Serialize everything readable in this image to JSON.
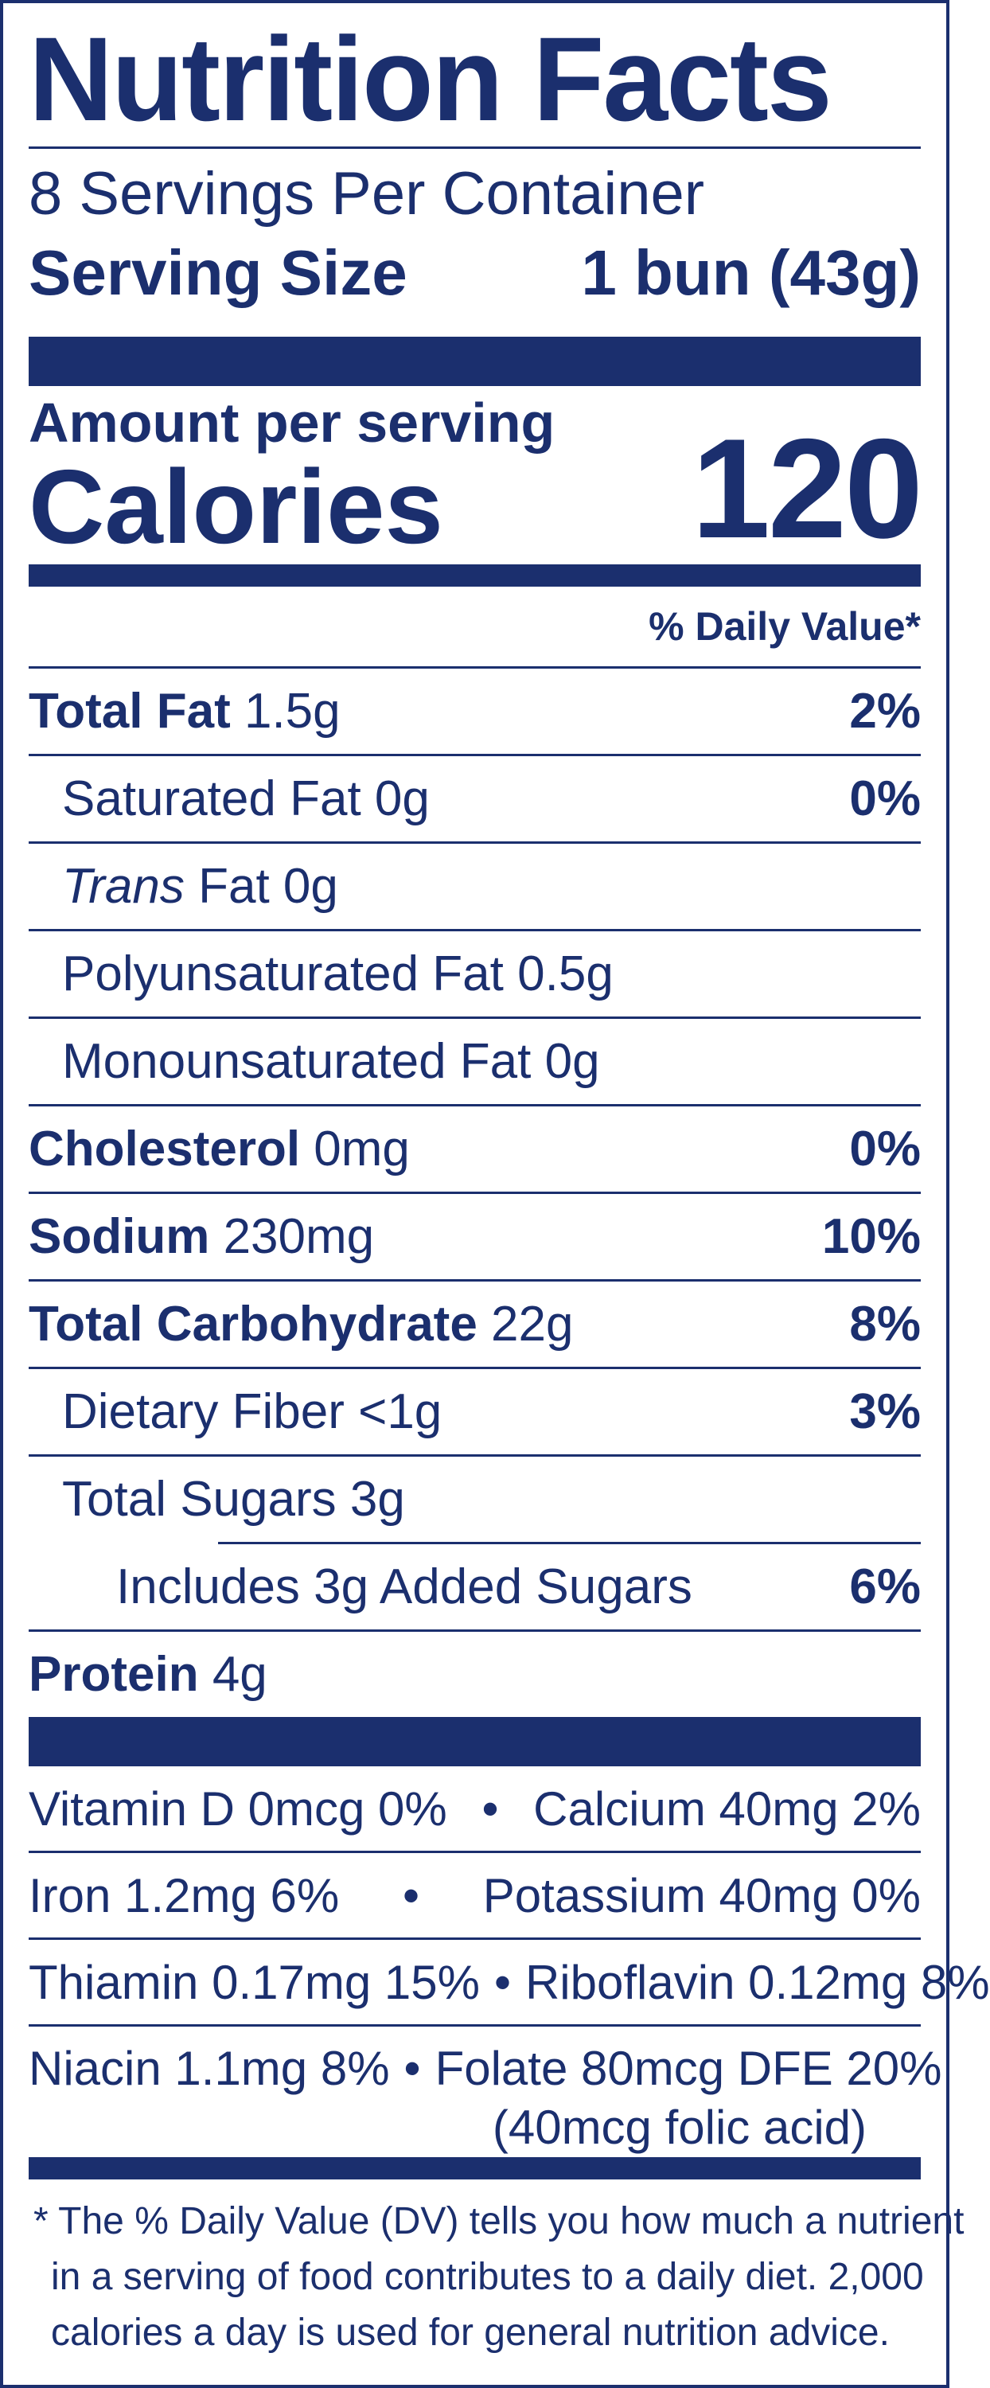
{
  "title": "Nutrition Facts",
  "servings_per_container": "8 Servings Per Container",
  "serving_size": {
    "label": "Serving Size",
    "value": "1 bun (43g)"
  },
  "amount_per_serving": "Amount per serving",
  "calories": {
    "label": "Calories",
    "value": "120"
  },
  "daily_value_header": "% Daily Value*",
  "nutrients": [
    {
      "name": "Total Fat",
      "amount": "1.5g",
      "dv": "2%"
    },
    {
      "name": "Saturated Fat",
      "amount": "0g",
      "dv": "0%"
    },
    {
      "name": "Trans",
      "amount": "Fat 0g",
      "dv": ""
    },
    {
      "name": "Polyunsaturated Fat",
      "amount": "0.5g",
      "dv": ""
    },
    {
      "name": "Monounsaturated Fat",
      "amount": "0g",
      "dv": ""
    },
    {
      "name": "Cholesterol",
      "amount": "0mg",
      "dv": "0%"
    },
    {
      "name": "Sodium",
      "amount": "230mg",
      "dv": "10%"
    },
    {
      "name": "Total Carbohydrate",
      "amount": "22g",
      "dv": "8%"
    },
    {
      "name": "Dietary Fiber",
      "amount": "<1g",
      "dv": "3%"
    },
    {
      "name": "Total Sugars",
      "amount": "3g",
      "dv": ""
    },
    {
      "name": "Includes 3g Added Sugars",
      "amount": "",
      "dv": "6%"
    },
    {
      "name": "Protein",
      "amount": "4g",
      "dv": ""
    }
  ],
  "vitamins": [
    {
      "left": "Vitamin D 0mcg 0%",
      "right": "Calcium 40mg 2%"
    },
    {
      "left": "Iron 1.2mg 6%",
      "right": "Potassium 40mg 0%"
    },
    {
      "left": "Thiamin 0.17mg 15%",
      "right": "Riboflavin 0.12mg 8%"
    },
    {
      "left": "Niacin 1.1mg 8%",
      "right": "Folate 80mcg DFE 20%",
      "sub": "(40mcg folic acid)"
    }
  ],
  "bullet": "•",
  "footnote": [
    "* The % Daily Value (DV) tells you how much a nutrient",
    "in a serving of food contributes to a daily diet. 2,000",
    "calories a day is used for general nutrition advice."
  ]
}
